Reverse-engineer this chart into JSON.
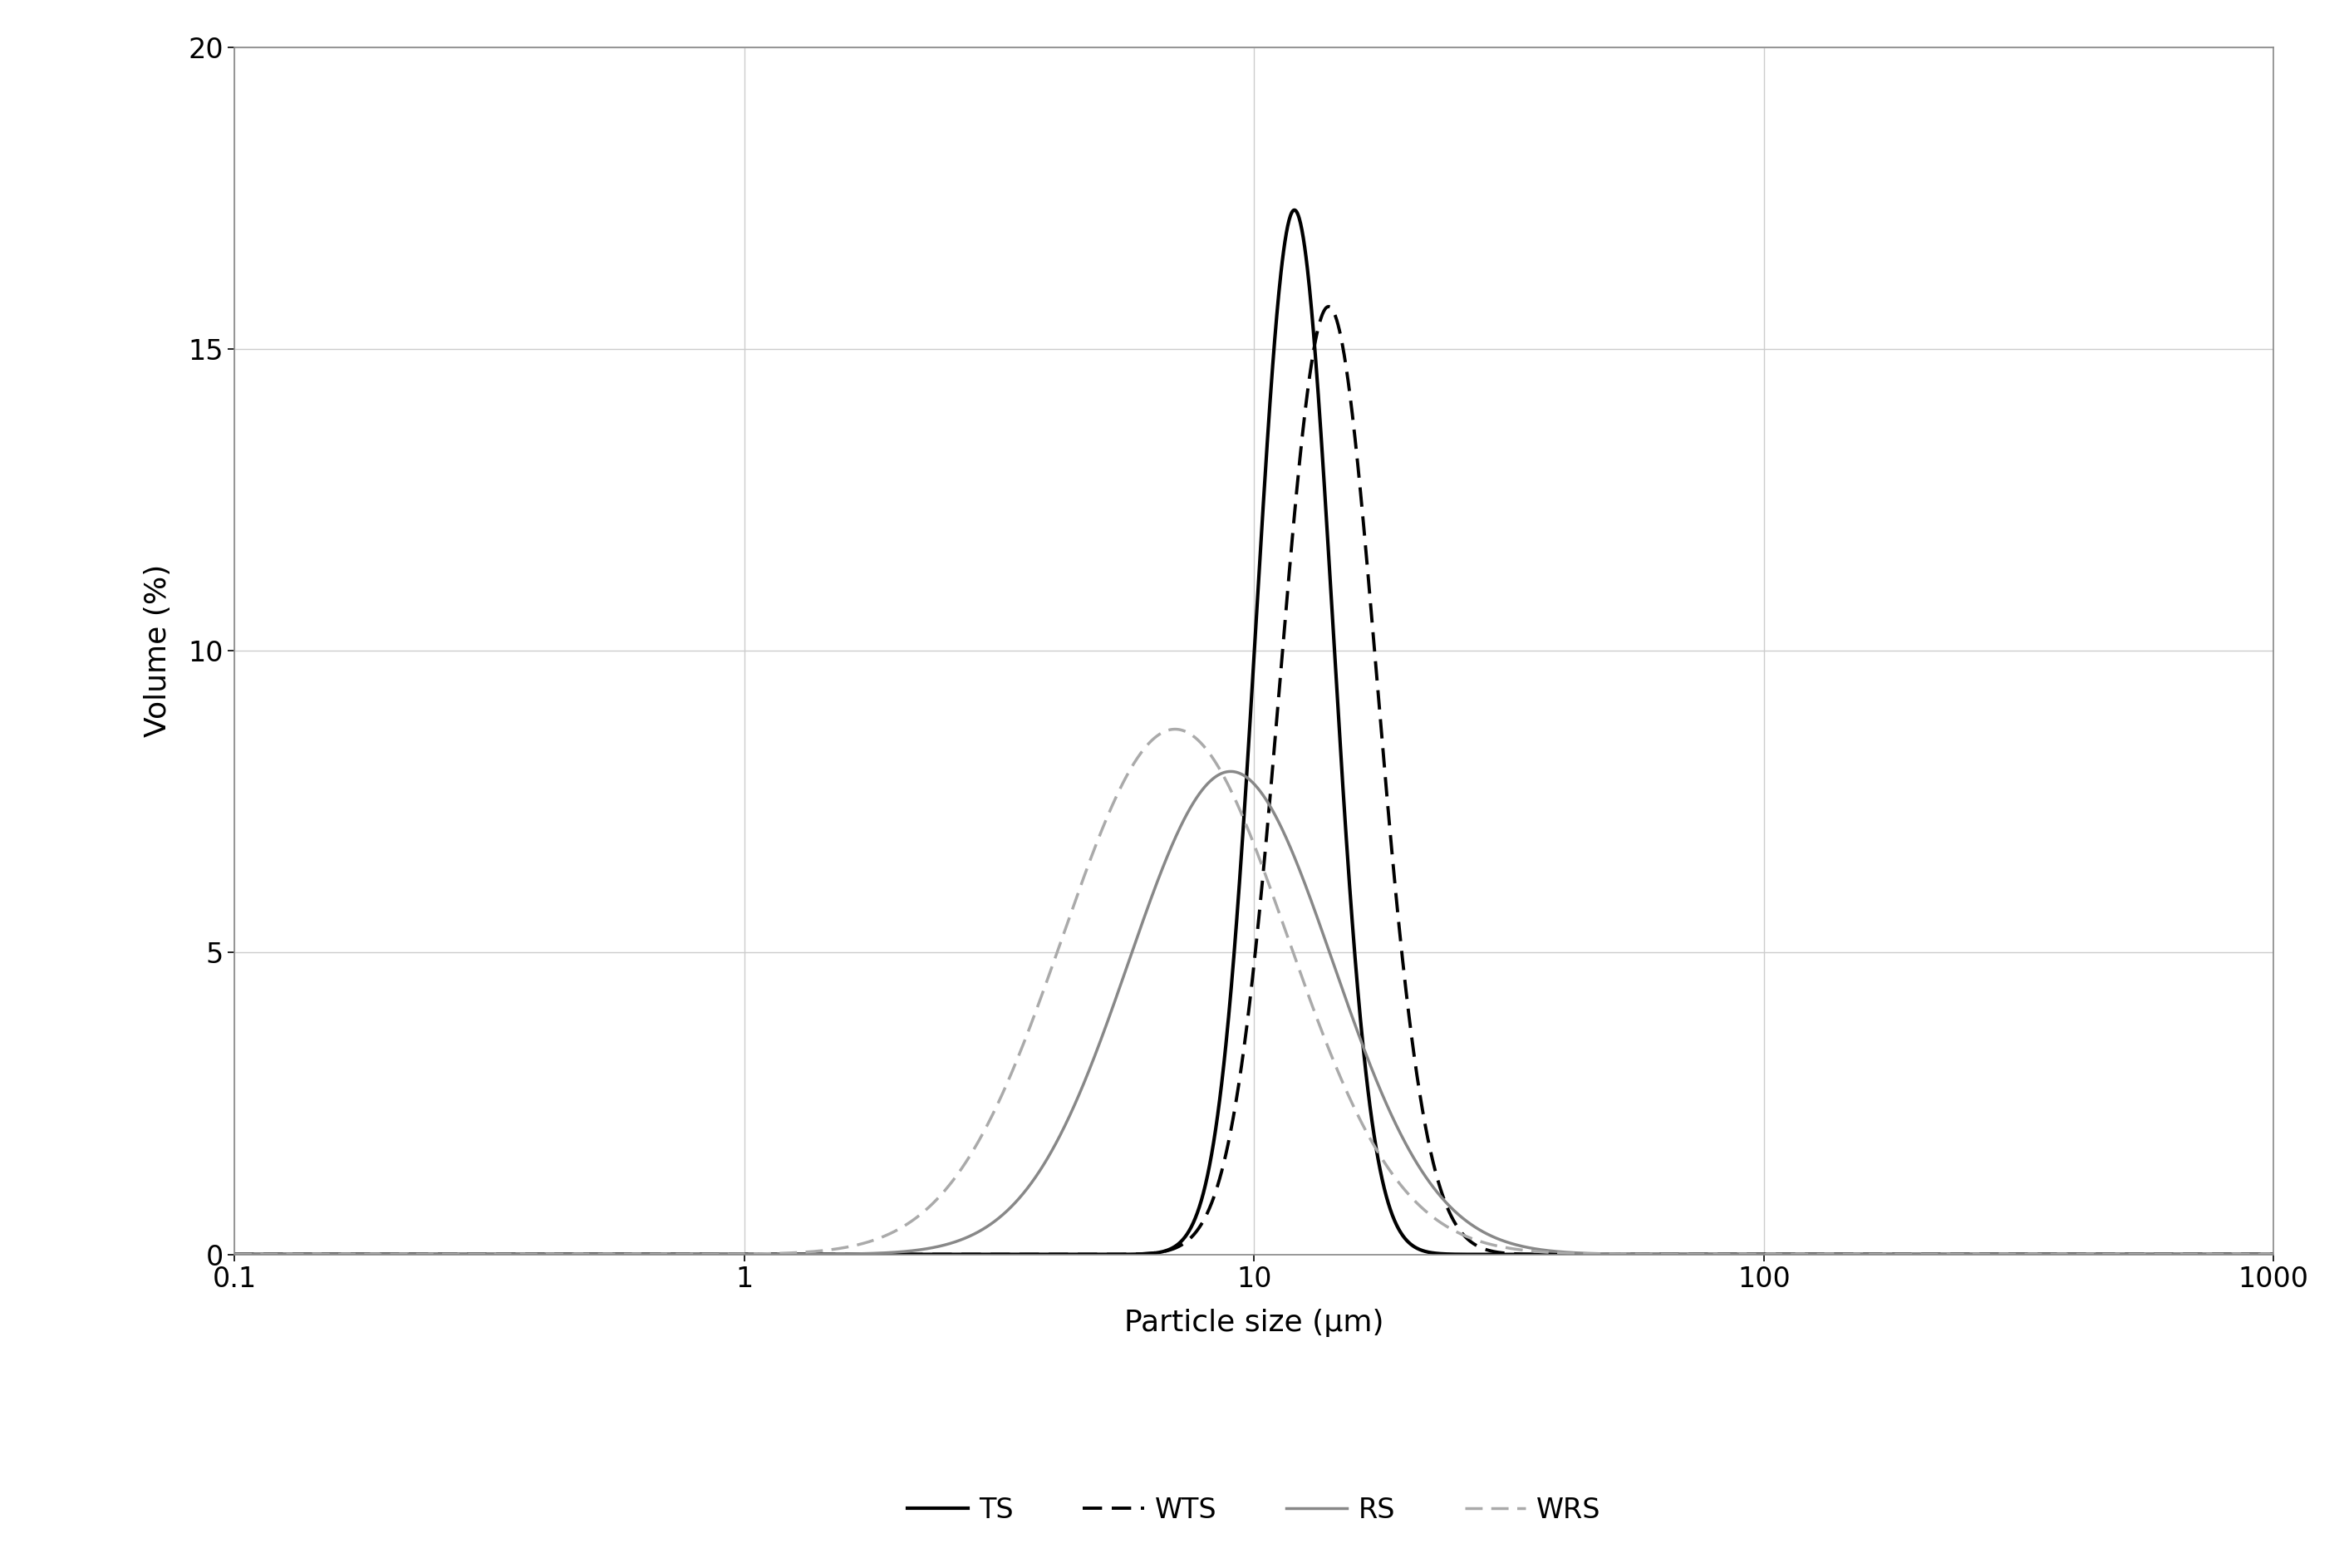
{
  "title": "",
  "xlabel": "Particle size (μm)",
  "ylabel": "Volume (%)",
  "xlim_log": [
    0.1,
    1000
  ],
  "ylim": [
    0,
    20
  ],
  "yticks": [
    0,
    5,
    10,
    15,
    20
  ],
  "series": {
    "TS": {
      "color": "#000000",
      "linestyle": "solid",
      "linewidth": 3.0,
      "peak": 12.0,
      "peak_val": 17.3,
      "sigma_log": 0.075,
      "label": "TS"
    },
    "WTS": {
      "color": "#000000",
      "linestyle": "dashed",
      "linewidth": 2.8,
      "peak": 14.0,
      "peak_val": 15.7,
      "sigma_log": 0.095,
      "label": "WTS"
    },
    "RS": {
      "color": "#888888",
      "linestyle": "solid",
      "linewidth": 2.5,
      "peak": 9.0,
      "peak_val": 8.0,
      "sigma_log": 0.2,
      "label": "RS"
    },
    "WRS": {
      "color": "#aaaaaa",
      "linestyle": "dashed",
      "linewidth": 2.5,
      "peak": 7.0,
      "peak_val": 8.7,
      "sigma_log": 0.22,
      "label": "WRS"
    }
  },
  "legend_entries": [
    "TS",
    "WTS",
    "RS",
    "WRS"
  ],
  "grid_color": "#cccccc",
  "background_color": "#ffffff",
  "font_size": 26,
  "tick_font_size": 24,
  "legend_font_size": 24,
  "border_color": "#888888"
}
